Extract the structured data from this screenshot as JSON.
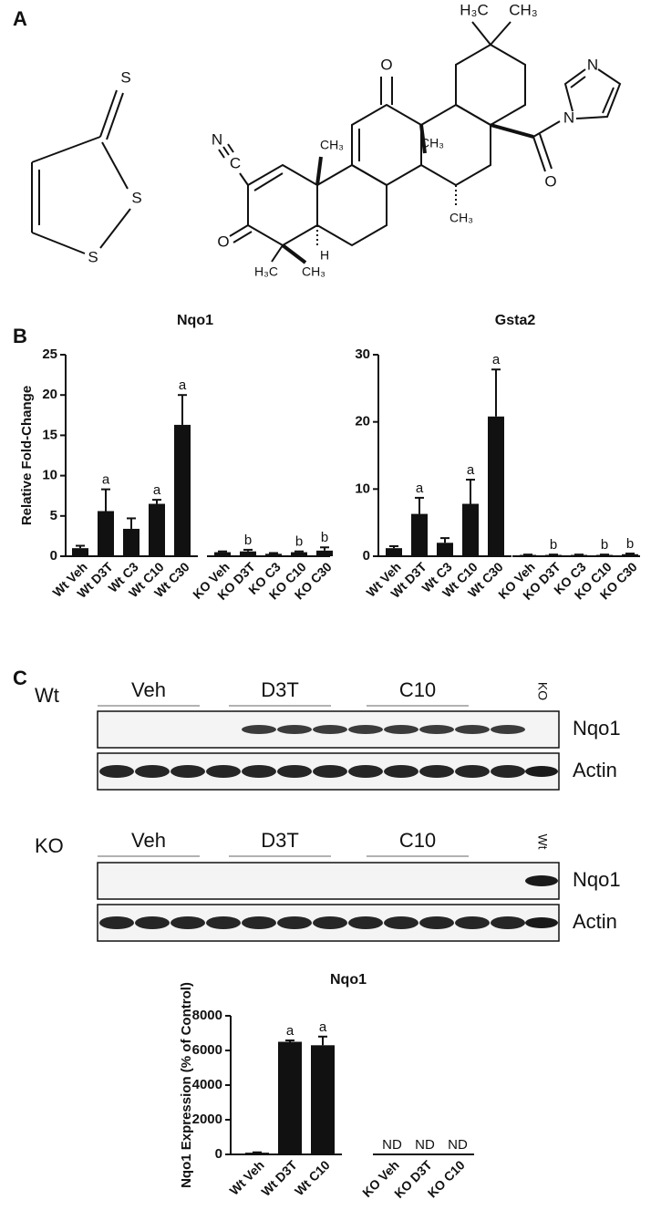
{
  "panel_labels": [
    "A",
    "B",
    "C"
  ],
  "structures": {
    "d3t_atoms": [
      "S",
      "S",
      "S"
    ],
    "cddo_im_atoms": [
      "H₃C",
      "CH₃",
      "O",
      "N",
      "N",
      "O",
      "N",
      "C",
      "CH₃",
      "CH₃",
      "CH₃",
      "O",
      "H",
      "H₃C",
      "CH₃"
    ]
  },
  "chart_data": [
    {
      "type": "bar",
      "title": "Nqo1",
      "y_label": "Relative Fold-Change",
      "categories": [
        "Wt Veh",
        "Wt D3T",
        "Wt C3",
        "Wt C10",
        "Wt C30",
        "KO Veh",
        "KO D3T",
        "KO C3",
        "KO C10",
        "KO C30"
      ],
      "values": [
        1.0,
        5.6,
        3.4,
        6.5,
        16.3,
        0.5,
        0.6,
        0.3,
        0.5,
        0.7
      ],
      "errors": [
        0.3,
        2.7,
        1.3,
        0.5,
        3.7,
        0.1,
        0.2,
        0.1,
        0.1,
        0.4
      ],
      "annotations": [
        null,
        "a",
        null,
        "a",
        "a",
        null,
        "b",
        null,
        "b",
        "b"
      ],
      "color": "#111111",
      "ylim": [
        0,
        25
      ],
      "yticks": [
        0,
        5,
        10,
        15,
        20,
        25
      ]
    },
    {
      "type": "bar",
      "title": "Gsta2",
      "categories": [
        "Wt Veh",
        "Wt D3T",
        "Wt C3",
        "Wt C10",
        "Wt C30",
        "KO Veh",
        "KO D3T",
        "KO C3",
        "KO C10",
        "KO C30"
      ],
      "values": [
        1.2,
        6.3,
        2.0,
        7.8,
        20.8,
        0.2,
        0.2,
        0.2,
        0.2,
        0.3
      ],
      "errors": [
        0.3,
        2.4,
        0.7,
        3.6,
        7.0,
        0.05,
        0.05,
        0.05,
        0.05,
        0.1
      ],
      "annotations": [
        null,
        "a",
        null,
        "a",
        "a",
        null,
        "b",
        null,
        "b",
        "b"
      ],
      "color": "#111111",
      "ylim": [
        0,
        30
      ],
      "yticks": [
        0,
        10,
        20,
        30
      ]
    },
    {
      "type": "bar",
      "title": "Nqo1",
      "y_label": "Nqo1 Expression (% of Control)",
      "categories": [
        "Wt Veh",
        "Wt D3T",
        "Wt C10",
        "KO Veh",
        "KO D3T",
        "KO C10"
      ],
      "values": [
        100,
        6500,
        6300,
        null,
        null,
        null
      ],
      "errors": [
        20,
        80,
        500,
        null,
        null,
        null
      ],
      "annotations": [
        null,
        "a",
        "a",
        "ND",
        "ND",
        "ND"
      ],
      "color": "#111111",
      "ylim": [
        0,
        8000
      ],
      "yticks": [
        0,
        2000,
        4000,
        6000,
        8000
      ]
    }
  ],
  "blots": [
    {
      "genotype": "Wt",
      "groups": [
        "Veh",
        "D3T",
        "C10"
      ],
      "control_lane": "KO",
      "proteins": [
        "Nqo1",
        "Actin"
      ]
    },
    {
      "genotype": "KO",
      "groups": [
        "Veh",
        "D3T",
        "C10"
      ],
      "control_lane": "Wt",
      "proteins": [
        "Nqo1",
        "Actin"
      ]
    }
  ]
}
